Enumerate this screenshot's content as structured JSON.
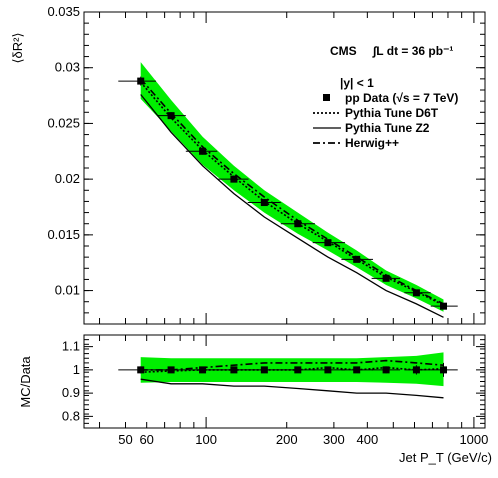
{
  "chart_data": [
    {
      "type": "scatter",
      "panel": "main",
      "ylabel": "⟨δR²⟩",
      "xlim": [
        35,
        1100
      ],
      "ylim": [
        0.007,
        0.035
      ],
      "x_scale": "log",
      "yticks": [
        0.01,
        0.015,
        0.02,
        0.025,
        0.03,
        0.035
      ],
      "ytick_labels": [
        "0.01",
        "0.015",
        "0.02",
        "0.025",
        "0.03",
        "0.035"
      ],
      "annotation": {
        "experiment": "CMS",
        "lumi": "∫L dt = 36 pb⁻¹",
        "selection": "|y| < 1"
      },
      "legend": {
        "placement": "top-right",
        "entries": [
          {
            "label": "pp Data (√s = 7 TeV)",
            "style": "marker"
          },
          {
            "label": "Pythia Tune D6T",
            "style": "dotted"
          },
          {
            "label": "Pythia Tune Z2",
            "style": "solid"
          },
          {
            "label": "Herwig++",
            "style": "dashdot"
          }
        ]
      },
      "data": {
        "name": "pp Data (√s = 7 TeV)",
        "x": [
          57,
          74,
          97,
          127,
          165,
          220,
          285,
          365,
          470,
          610,
          770
        ],
        "x_err_low": [
          10,
          8,
          13,
          16,
          22,
          30,
          35,
          45,
          55,
          60,
          80
        ],
        "x_err_high": [
          8,
          10,
          13,
          17,
          25,
          35,
          45,
          55,
          60,
          80,
          100
        ],
        "y": [
          0.0288,
          0.0257,
          0.0225,
          0.02,
          0.0179,
          0.016,
          0.0143,
          0.0128,
          0.0111,
          0.0098,
          0.0086
        ],
        "y_err": [
          0.0004,
          0.0003,
          0.0003,
          0.0003,
          0.0003,
          0.0002,
          0.0002,
          0.0002,
          0.0002,
          0.0002,
          0.0002
        ]
      },
      "band": {
        "color": "#00ee00",
        "x": [
          57,
          74,
          97,
          127,
          165,
          220,
          285,
          365,
          470,
          610,
          770
        ],
        "low": [
          0.0272,
          0.0243,
          0.0213,
          0.019,
          0.017,
          0.0151,
          0.0136,
          0.0121,
          0.0105,
          0.0093,
          0.0081
        ],
        "high": [
          0.0305,
          0.0271,
          0.0238,
          0.0212,
          0.019,
          0.017,
          0.0152,
          0.0136,
          0.0118,
          0.0105,
          0.0092
        ]
      },
      "series": [
        {
          "name": "Pythia Tune D6T",
          "style": "dotted",
          "x": [
            57,
            74,
            97,
            127,
            165,
            220,
            285,
            365,
            470,
            610,
            770
          ],
          "y": [
            0.0287,
            0.0255,
            0.0226,
            0.0202,
            0.018,
            0.016,
            0.0144,
            0.0128,
            0.0112,
            0.0099,
            0.0087
          ]
        },
        {
          "name": "Pythia Tune Z2",
          "style": "solid",
          "x": [
            57,
            74,
            97,
            127,
            165,
            220,
            285,
            365,
            470,
            610,
            770
          ],
          "y": [
            0.0276,
            0.0242,
            0.0212,
            0.0187,
            0.0166,
            0.0147,
            0.013,
            0.0116,
            0.01,
            0.0088,
            0.0076
          ]
        },
        {
          "name": "Herwig++",
          "style": "dashdot",
          "x": [
            57,
            74,
            97,
            127,
            165,
            220,
            285,
            365,
            470,
            610,
            770
          ],
          "y": [
            0.029,
            0.0259,
            0.0229,
            0.0205,
            0.0184,
            0.0163,
            0.0146,
            0.013,
            0.0114,
            0.01,
            0.0088
          ]
        }
      ]
    },
    {
      "type": "line",
      "panel": "ratio",
      "ylabel": "MC/Data",
      "xlabel": "Jet P_T (GeV/c)",
      "xlim": [
        35,
        1100
      ],
      "ylim": [
        0.75,
        1.15
      ],
      "x_scale": "log",
      "xticks": [
        50,
        60,
        100,
        200,
        300,
        400,
        1000
      ],
      "xtick_labels": [
        "50",
        "60",
        "100",
        "200",
        "300",
        "400",
        "1000"
      ],
      "yticks": [
        0.8,
        0.9,
        1.0,
        1.1
      ],
      "ytick_labels": [
        "0.8",
        "0.9",
        "1",
        "1.1"
      ],
      "data": {
        "x": [
          57,
          74,
          97,
          127,
          165,
          220,
          285,
          365,
          470,
          610,
          770
        ],
        "x_err_low": [
          10,
          8,
          13,
          16,
          22,
          30,
          35,
          45,
          55,
          60,
          80
        ],
        "x_err_high": [
          8,
          10,
          13,
          17,
          25,
          35,
          45,
          55,
          60,
          80,
          100
        ],
        "y": [
          1.0,
          1.0,
          1.0,
          1.0,
          1.0,
          1.0,
          1.0,
          1.0,
          1.0,
          1.0,
          1.0
        ],
        "y_err": [
          0.015,
          0.012,
          0.012,
          0.012,
          0.012,
          0.012,
          0.012,
          0.012,
          0.015,
          0.02,
          0.03
        ]
      },
      "band": {
        "color": "#00ee00",
        "x": [
          57,
          74,
          97,
          127,
          165,
          220,
          285,
          365,
          470,
          610,
          770
        ],
        "low": [
          0.945,
          0.948,
          0.948,
          0.948,
          0.948,
          0.948,
          0.948,
          0.948,
          0.945,
          0.94,
          0.93
        ],
        "high": [
          1.055,
          1.05,
          1.05,
          1.05,
          1.05,
          1.05,
          1.05,
          1.05,
          1.055,
          1.06,
          1.075
        ]
      },
      "series": [
        {
          "name": "Pythia Tune D6T",
          "style": "dotted",
          "x": [
            57,
            74,
            97,
            127,
            165,
            220,
            285,
            365,
            470,
            610,
            770
          ],
          "y": [
            0.99,
            0.995,
            1.0,
            1.0,
            1.0,
            1.0,
            1.01,
            1.0,
            1.01,
            1.0,
            1.005
          ]
        },
        {
          "name": "Pythia Tune Z2",
          "style": "solid",
          "x": [
            57,
            74,
            97,
            127,
            165,
            220,
            285,
            365,
            470,
            610,
            770
          ],
          "y": [
            0.96,
            0.94,
            0.94,
            0.93,
            0.93,
            0.92,
            0.91,
            0.9,
            0.9,
            0.89,
            0.88
          ]
        },
        {
          "name": "Herwig++",
          "style": "dashdot",
          "x": [
            57,
            74,
            97,
            127,
            165,
            220,
            285,
            365,
            470,
            610,
            770
          ],
          "y": [
            1.0,
            1.0,
            1.01,
            1.02,
            1.03,
            1.03,
            1.03,
            1.03,
            1.04,
            1.03,
            1.02
          ]
        }
      ]
    }
  ]
}
